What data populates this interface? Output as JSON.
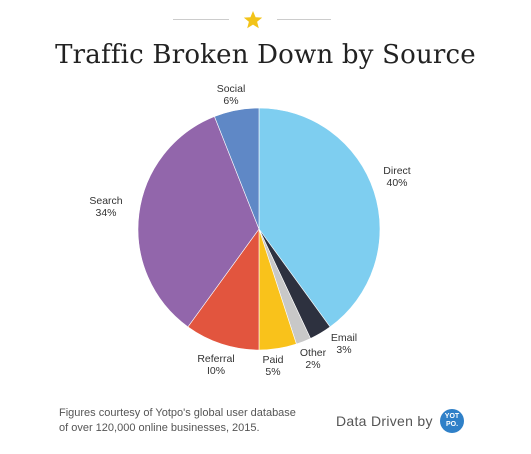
{
  "header": {
    "title": "Traffic Broken Down by Source",
    "star_color": "#f2c318"
  },
  "chart_data": {
    "type": "pie",
    "title": "Traffic Broken Down by Source",
    "start_angle_deg": 0,
    "direction": "clockwise",
    "slices": [
      {
        "name": "Direct",
        "value": 40,
        "label": "40%",
        "color": "#7ecef0"
      },
      {
        "name": "Email",
        "value": 3,
        "label": "3%",
        "color": "#2d313f"
      },
      {
        "name": "Other",
        "value": 2,
        "label": "2%",
        "color": "#c8c8c8"
      },
      {
        "name": "Paid",
        "value": 5,
        "label": "5%",
        "color": "#f9c21b"
      },
      {
        "name": "Referral",
        "value": 10,
        "label": "I0%",
        "color": "#e2553e"
      },
      {
        "name": "Search",
        "value": 34,
        "label": "34%",
        "color": "#9266ab"
      },
      {
        "name": "Social",
        "value": 6,
        "label": "6%",
        "color": "#5f88c6"
      }
    ]
  },
  "footer": {
    "note_line1": "Figures courtesy of Yotpo's global user database",
    "note_line2": "of over 120,000 online businesses, 2015.",
    "brand_text": "Data Driven by",
    "badge_line1": "YOT",
    "badge_line2": "PO."
  }
}
